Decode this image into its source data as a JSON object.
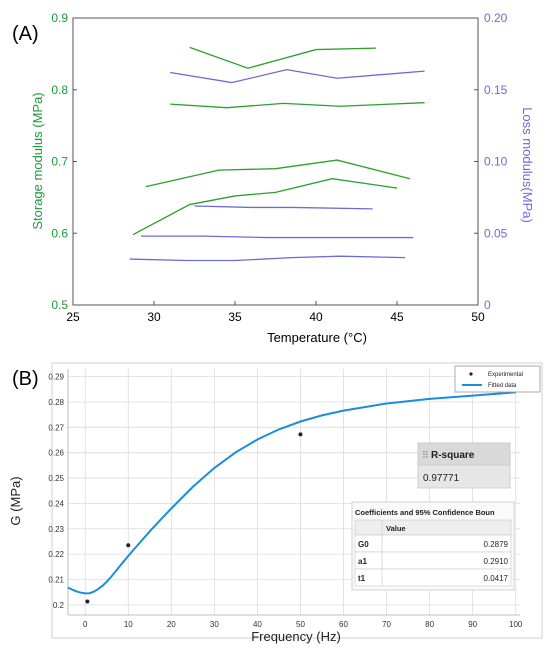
{
  "chart_data": [
    {
      "panel_label": "(A)",
      "type": "line",
      "xlabel": "Temperature (°C)",
      "ylabel": "Storage modulus (MPa)",
      "y2label": "Loss modulus(MPa)",
      "xlim": [
        25,
        50
      ],
      "ylim": [
        0.5,
        0.9
      ],
      "y2lim": [
        0,
        0.2
      ],
      "x_ticks": [
        "25",
        "30",
        "35",
        "40",
        "45",
        "50"
      ],
      "y_ticks": [
        "0.5",
        "0.6",
        "0.7",
        "0.8",
        "0.9"
      ],
      "y2_ticks": [
        "0",
        "0.05",
        "0.10",
        "0.15",
        "0.20"
      ],
      "colors": {
        "storage": "#2ca02c",
        "loss": "#6b6bd6",
        "axis_left": "#1a9a3a",
        "axis_right": "#6b6bd6"
      },
      "grid": false,
      "series": [
        {
          "axis": "left",
          "x": [
            32.2,
            35.8,
            40.0,
            43.7
          ],
          "y": [
            0.859,
            0.83,
            0.856,
            0.858
          ]
        },
        {
          "axis": "left",
          "x": [
            31.0,
            34.5,
            38.0,
            41.5,
            46.7
          ],
          "y": [
            0.78,
            0.775,
            0.781,
            0.777,
            0.782
          ]
        },
        {
          "axis": "left",
          "x": [
            29.5,
            34.0,
            37.5,
            41.3,
            45.8
          ],
          "y": [
            0.665,
            0.688,
            0.69,
            0.702,
            0.676
          ]
        },
        {
          "axis": "left",
          "x": [
            28.7,
            32.2,
            35.0,
            37.5,
            41.0,
            45.0
          ],
          "y": [
            0.598,
            0.64,
            0.652,
            0.657,
            0.676,
            0.663
          ]
        },
        {
          "axis": "right",
          "x": [
            31.0,
            34.8,
            38.2,
            41.3,
            46.7
          ],
          "y": [
            0.162,
            0.155,
            0.164,
            0.158,
            0.163
          ]
        },
        {
          "axis": "right",
          "x": [
            32.5,
            36.0,
            38.5,
            43.5
          ],
          "y": [
            0.069,
            0.068,
            0.068,
            0.067
          ]
        },
        {
          "axis": "right",
          "x": [
            29.2,
            33.0,
            37.0,
            42.0,
            46.0
          ],
          "y": [
            0.048,
            0.048,
            0.047,
            0.047,
            0.047
          ]
        },
        {
          "axis": "right",
          "x": [
            28.5,
            32.0,
            35.0,
            38.5,
            41.5,
            45.5
          ],
          "y": [
            0.032,
            0.031,
            0.031,
            0.033,
            0.034,
            0.033
          ]
        }
      ]
    },
    {
      "panel_label": "(B)",
      "type": "scatter",
      "xlabel": "Frequency (Hz)",
      "ylabel": "G (MPa)",
      "xlim": [
        -4,
        101
      ],
      "ylim": [
        0.196,
        0.293
      ],
      "x_ticks": [
        0,
        10,
        20,
        30,
        40,
        50,
        60,
        70,
        80,
        90,
        100
      ],
      "y_ticks": [
        "0.2",
        "0.21",
        "0.22",
        "0.23",
        "0.24",
        "0.25",
        "0.26",
        "0.27",
        "0.28",
        "0.29"
      ],
      "grid": true,
      "legend": {
        "position": "top-right",
        "entries": [
          "Experimental",
          "Fitted data"
        ]
      },
      "colors": {
        "fit": "#1a8ed6",
        "points": "#222222",
        "grid": "#dcdcdc"
      },
      "series": [
        {
          "name": "Experimental",
          "x": [
            0.5,
            10,
            50
          ],
          "y": [
            0.2013,
            0.2235,
            0.2672
          ]
        },
        {
          "name": "Fitted data",
          "x": [
            -4,
            -3,
            -2,
            -1,
            0,
            1,
            2,
            3,
            4,
            5,
            6,
            7,
            8,
            10,
            12,
            15,
            18,
            20,
            25,
            30,
            35,
            40,
            45,
            50,
            55,
            60,
            70,
            80,
            90,
            100
          ],
          "y": [
            0.2068,
            0.206,
            0.2053,
            0.2048,
            0.2045,
            0.2046,
            0.2052,
            0.2062,
            0.2075,
            0.2091,
            0.211,
            0.2131,
            0.2152,
            0.2193,
            0.2232,
            0.229,
            0.2345,
            0.238,
            0.2465,
            0.254,
            0.2602,
            0.2652,
            0.2692,
            0.2723,
            0.2747,
            0.2766,
            0.2794,
            0.2812,
            0.2825,
            0.2838
          ]
        }
      ],
      "rsquare": {
        "title": "R-square",
        "value": "0.97771"
      },
      "coefficients": {
        "title": "Coefficients and 95% Confidence Boun",
        "header": "Value",
        "rows": [
          {
            "name": "G0",
            "value": "0.2879"
          },
          {
            "name": "a1",
            "value": "0.2910"
          },
          {
            "name": "t1",
            "value": "0.0417"
          }
        ]
      }
    }
  ]
}
